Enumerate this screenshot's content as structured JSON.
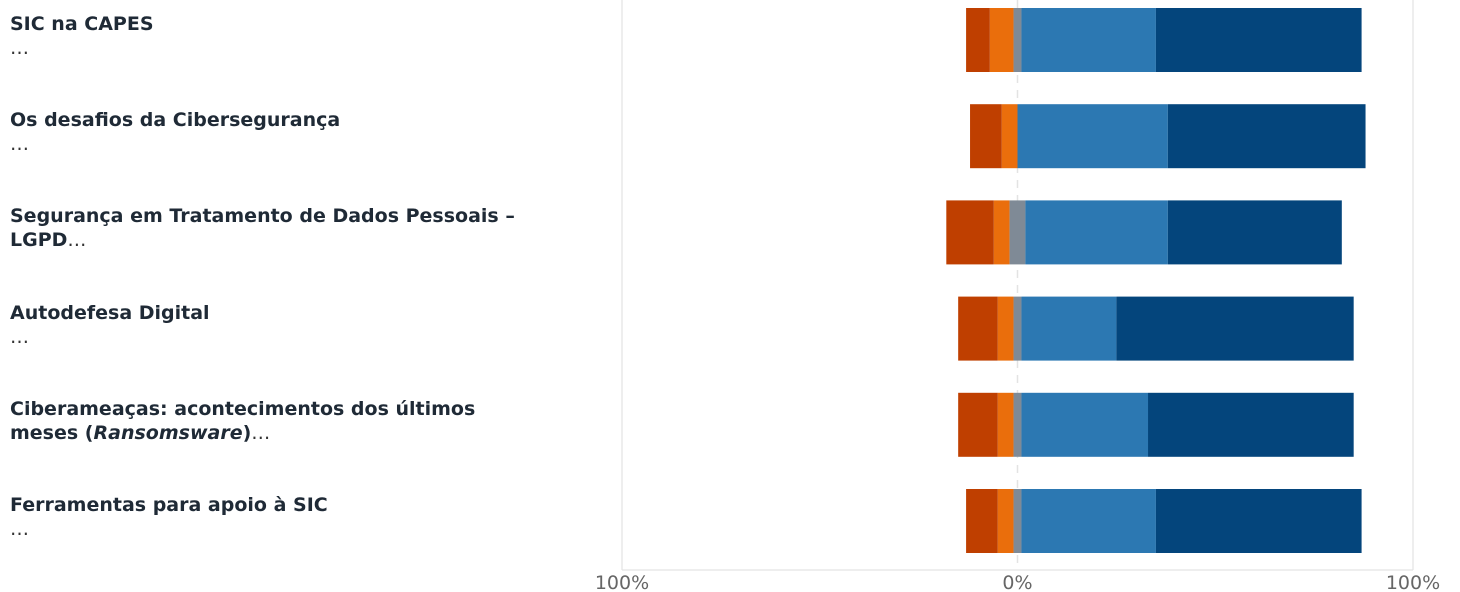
{
  "chart_data": {
    "type": "bar",
    "orientation": "horizontal",
    "stacked": "diverging",
    "categories": [
      "SIC na CAPES",
      "Os desafios da Cibersegurança",
      "Segurança em Tratamento de Dados Pessoais – LGPD",
      "Autodefesa Digital",
      "Ciberameaças: acontecimentos dos últimos meses (Ransomsware)",
      "Ferramentas para apoio à SIC"
    ],
    "category_labels": [
      {
        "line1": "SIC na CAPES",
        "line1_ellipsis": "",
        "line2": "",
        "line2_em": "",
        "line2_tail": "",
        "line2_ellipsis": "…"
      },
      {
        "line1": "Os desafios da Cibersegurança",
        "line1_ellipsis": "",
        "line2": "",
        "line2_em": "",
        "line2_tail": "",
        "line2_ellipsis": "…"
      },
      {
        "line1": "Segurança em Tratamento de Dados Pessoais –",
        "line1_ellipsis": "",
        "line2": "LGPD",
        "line2_em": "",
        "line2_tail": "",
        "line2_ellipsis": "…"
      },
      {
        "line1": "Autodefesa Digital",
        "line1_ellipsis": "",
        "line2": "",
        "line2_em": "",
        "line2_tail": "",
        "line2_ellipsis": "…"
      },
      {
        "line1": "Ciberameaças: acontecimentos dos últimos",
        "line1_ellipsis": "",
        "line2": "meses (",
        "line2_em": "Ransomsware",
        "line2_tail": ")",
        "line2_ellipsis": "…"
      },
      {
        "line1": "Ferramentas para apoio à SIC",
        "line1_ellipsis": "",
        "line2": "",
        "line2_em": "",
        "line2_tail": "",
        "line2_ellipsis": "…"
      }
    ],
    "negative_series": [
      {
        "color": "#bf3f00",
        "values": [
          6,
          8,
          12,
          10,
          10,
          8
        ]
      },
      {
        "color": "#ea6e0c",
        "values": [
          6,
          4,
          4,
          4,
          4,
          4
        ]
      }
    ],
    "neutral_series": {
      "color": "#7f8a96",
      "values": [
        2,
        0,
        4,
        2,
        2,
        2
      ]
    },
    "positive_series": [
      {
        "color": "#2c78b2",
        "values": [
          34,
          38,
          36,
          24,
          32,
          34
        ]
      },
      {
        "color": "#04457c",
        "values": [
          52,
          50,
          44,
          60,
          52,
          52
        ]
      }
    ],
    "xlim": [
      -100,
      100
    ],
    "x_tick_labels": [
      "100%",
      "0%",
      "100%"
    ],
    "x_ticks": [
      -100,
      0,
      100
    ],
    "grid": true,
    "zero_line": "dashed"
  }
}
